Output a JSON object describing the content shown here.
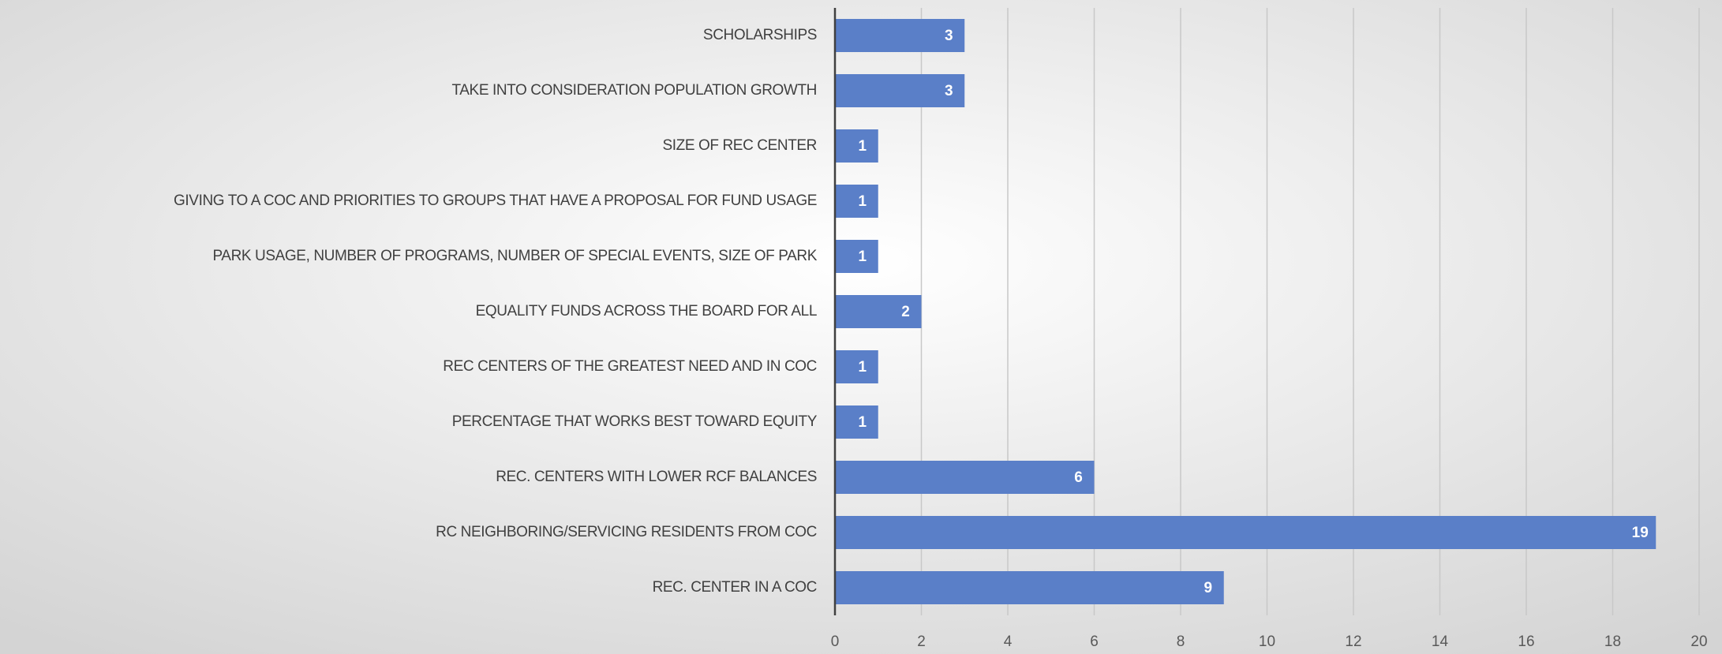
{
  "chart_data": {
    "type": "hbar",
    "categories": [
      "SCHOLARSHIPS",
      "TAKE INTO CONSIDERATION POPULATION GROWTH",
      "SIZE OF REC CENTER",
      "GIVING TO A COC AND PRIORITIES TO GROUPS THAT HAVE A PROPOSAL FOR FUND USAGE",
      "PARK USAGE, NUMBER OF PROGRAMS, NUMBER OF SPECIAL EVENTS, SIZE OF PARK",
      "EQUALITY FUNDS ACROSS THE BOARD FOR ALL",
      "REC CENTERS OF THE GREATEST NEED AND IN COC",
      "PERCENTAGE THAT WORKS BEST TOWARD EQUITY",
      "REC. CENTERS WITH LOWER RCF BALANCES",
      "RC NEIGHBORING/SERVICING RESIDENTS FROM COC",
      "REC. CENTER IN A COC"
    ],
    "values": [
      3,
      3,
      1,
      1,
      1,
      2,
      1,
      1,
      6,
      19,
      9
    ],
    "color": "#5a7fc8",
    "xlim": [
      0,
      20
    ],
    "xticks": [
      0,
      2,
      4,
      6,
      8,
      10,
      12,
      14,
      16,
      18,
      20
    ],
    "grid": true
  }
}
